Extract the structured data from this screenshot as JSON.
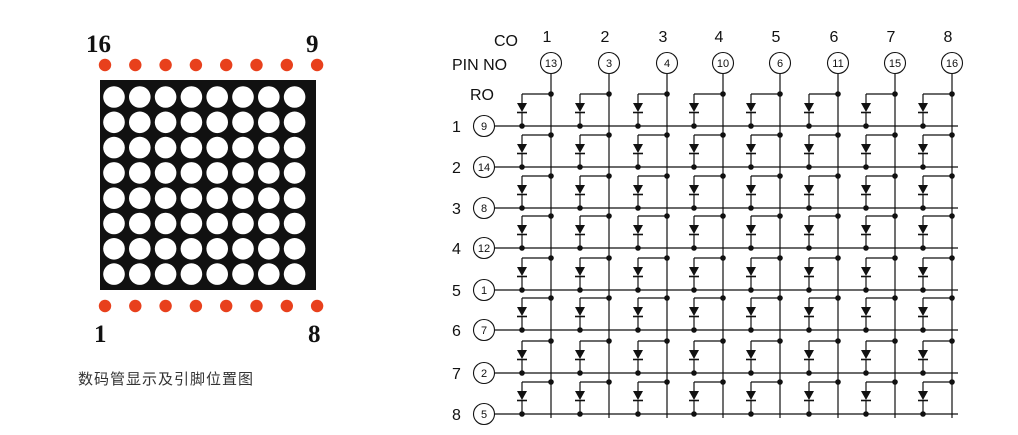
{
  "package": {
    "top_left_label": "16",
    "top_right_label": "9",
    "bottom_left_label": "1",
    "bottom_right_label": "8",
    "pins_per_side": 8,
    "matrix_rows": 8,
    "matrix_cols": 8,
    "caption": "数码管显示及引脚位置图",
    "colors": {
      "pin": "#e8401c",
      "body": "#111111",
      "led": "#ffffff"
    }
  },
  "schematic": {
    "co_label": "CO",
    "pin_no_label": "PIN NO",
    "ro_label": "RO",
    "columns": [
      {
        "number": "1",
        "pin": "13"
      },
      {
        "number": "2",
        "pin": "3"
      },
      {
        "number": "3",
        "pin": "4"
      },
      {
        "number": "4",
        "pin": "10"
      },
      {
        "number": "5",
        "pin": "6"
      },
      {
        "number": "6",
        "pin": "11"
      },
      {
        "number": "7",
        "pin": "15"
      },
      {
        "number": "8",
        "pin": "16"
      }
    ],
    "rows": [
      {
        "number": "1",
        "pin": "9"
      },
      {
        "number": "2",
        "pin": "14"
      },
      {
        "number": "3",
        "pin": "8"
      },
      {
        "number": "4",
        "pin": "12"
      },
      {
        "number": "5",
        "pin": "1"
      },
      {
        "number": "6",
        "pin": "7"
      },
      {
        "number": "7",
        "pin": "2"
      },
      {
        "number": "8",
        "pin": "5"
      }
    ]
  }
}
